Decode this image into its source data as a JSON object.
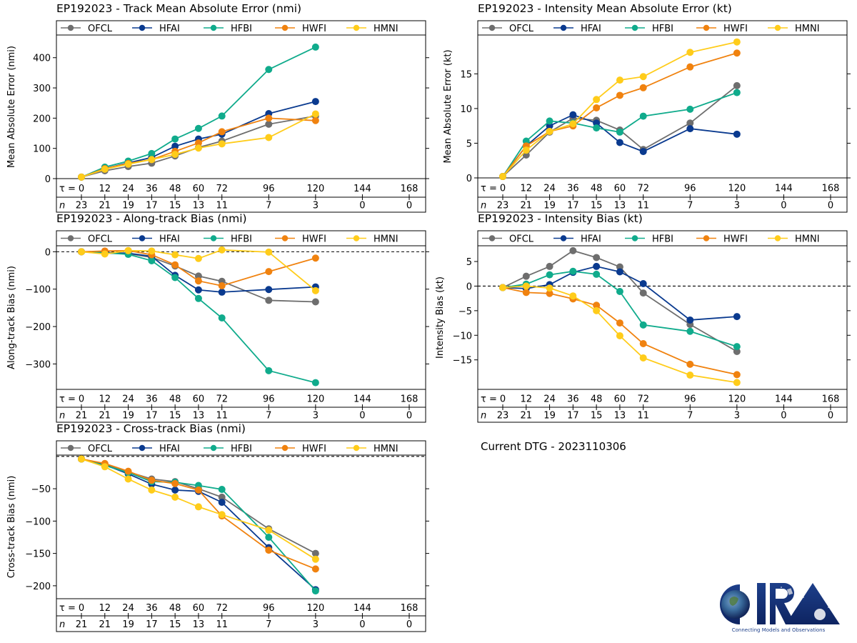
{
  "series_styles": [
    {
      "name": "OFCL",
      "color": "#6e6e6e"
    },
    {
      "name": "HFAI",
      "color": "#0a3a8f"
    },
    {
      "name": "HFBI",
      "color": "#10ab8c"
    },
    {
      "name": "HWFI",
      "color": "#f0820f"
    },
    {
      "name": "HMNI",
      "color": "#ffcc1a"
    }
  ],
  "tau_label": "τ = ",
  "n_label": "n",
  "tau_ticks": [
    0,
    12,
    24,
    36,
    48,
    60,
    72,
    96,
    120,
    144,
    168
  ],
  "current_dtg": "Current DTG - 2023110306",
  "logo": {
    "text": "CIRA",
    "tagline": "Connecting Models and Observations"
  },
  "chart_data": [
    {
      "id": "track-mae",
      "type": "line",
      "title": "EP192023 - Track Mean Absolute Error (nmi)",
      "xlabel": "",
      "ylabel": "Mean Absolute Error (nmi)",
      "x": [
        0,
        12,
        24,
        36,
        48,
        60,
        72,
        96,
        120
      ],
      "ylim": [
        0,
        475
      ],
      "yticks": [
        0,
        100,
        200,
        300,
        400
      ],
      "zero_line": false,
      "legend": "top",
      "n_counts": [
        23,
        21,
        19,
        17,
        15,
        13,
        11,
        7,
        3,
        0,
        0
      ],
      "series": [
        {
          "name": "OFCL",
          "values": [
            5,
            26,
            40,
            51,
            75,
            103,
            124,
            180,
            207
          ]
        },
        {
          "name": "HFAI",
          "values": [
            5,
            33,
            52,
            70,
            107,
            131,
            147,
            215,
            255
          ]
        },
        {
          "name": "HFBI",
          "values": [
            5,
            38,
            58,
            83,
            131,
            166,
            207,
            361,
            435
          ]
        },
        {
          "name": "HWFI",
          "values": [
            5,
            33,
            50,
            63,
            90,
            118,
            155,
            200,
            192
          ]
        },
        {
          "name": "HMNI",
          "values": [
            5,
            31,
            48,
            63,
            80,
            101,
            115,
            136,
            214
          ]
        }
      ]
    },
    {
      "id": "intensity-mae",
      "type": "line",
      "title": "EP192023 - Intensity Mean Absolute Error (kt)",
      "xlabel": "",
      "ylabel": "Mean Absolute Error (kt)",
      "x": [
        0,
        12,
        24,
        36,
        48,
        60,
        72,
        96,
        120
      ],
      "ylim": [
        0,
        20.6
      ],
      "yticks": [
        0,
        5,
        10,
        15
      ],
      "zero_line": false,
      "legend": "top",
      "n_counts": [
        23,
        21,
        19,
        17,
        15,
        13,
        11,
        7,
        3,
        0,
        0
      ],
      "series": [
        {
          "name": "OFCL",
          "values": [
            0.2,
            3.3,
            6.6,
            8.6,
            8.3,
            6.9,
            4.1,
            7.9,
            13.3
          ]
        },
        {
          "name": "HFAI",
          "values": [
            0.2,
            4.6,
            7.5,
            9.1,
            7.9,
            5.1,
            3.8,
            7.1,
            6.3
          ]
        },
        {
          "name": "HFBI",
          "values": [
            0.2,
            5.3,
            8.2,
            7.9,
            7.2,
            6.6,
            8.9,
            9.9,
            12.3
          ]
        },
        {
          "name": "HWFI",
          "values": [
            0.2,
            4.6,
            6.7,
            7.5,
            10.1,
            11.9,
            13.0,
            16.0,
            18.0
          ]
        },
        {
          "name": "HMNI",
          "values": [
            0.2,
            4.0,
            6.7,
            7.8,
            11.3,
            14.1,
            14.6,
            18.1,
            19.6
          ]
        }
      ]
    },
    {
      "id": "along-track-bias",
      "type": "line",
      "title": "EP192023 - Along-track Bias (nmi)",
      "xlabel": "",
      "ylabel": "Along-track Bias (nmi)",
      "x": [
        0,
        12,
        24,
        36,
        48,
        60,
        72,
        96,
        120
      ],
      "ylim": [
        -368,
        16
      ],
      "yticks": [
        -300,
        -200,
        -100,
        0
      ],
      "zero_line": true,
      "legend": "top",
      "n_counts": [
        21,
        21,
        19,
        17,
        15,
        13,
        11,
        7,
        3,
        0,
        0
      ],
      "series": [
        {
          "name": "OFCL",
          "values": [
            0,
            -4,
            -5,
            -15,
            -38,
            -65,
            -79,
            -130,
            -134
          ]
        },
        {
          "name": "HFAI",
          "values": [
            0,
            -2,
            -4,
            -12,
            -63,
            -102,
            -108,
            -101,
            -94
          ]
        },
        {
          "name": "HFBI",
          "values": [
            0,
            -3,
            -7,
            -24,
            -69,
            -125,
            -177,
            -318,
            -350
          ]
        },
        {
          "name": "HWFI",
          "values": [
            0,
            2,
            3,
            -8,
            -35,
            -78,
            -91,
            -53,
            -17
          ]
        },
        {
          "name": "HMNI",
          "values": [
            0,
            -6,
            3,
            2,
            -8,
            -18,
            5,
            -1,
            -104
          ]
        }
      ]
    },
    {
      "id": "intensity-bias",
      "type": "line",
      "title": "EP192023 - Intensity Bias (kt)",
      "xlabel": "",
      "ylabel": "Intensity Bias (kt)",
      "x": [
        0,
        12,
        24,
        36,
        48,
        60,
        72,
        96,
        120
      ],
      "ylim": [
        -21.0,
        8.2
      ],
      "yticks": [
        -15,
        -10,
        -5,
        0,
        5
      ],
      "zero_line": true,
      "legend": "top",
      "n_counts": [
        23,
        21,
        19,
        17,
        15,
        13,
        11,
        7,
        3,
        0,
        0
      ],
      "series": [
        {
          "name": "OFCL",
          "values": [
            -0.3,
            2.0,
            4.0,
            7.2,
            5.8,
            3.9,
            -1.4,
            -7.8,
            -13.3
          ]
        },
        {
          "name": "HFAI",
          "values": [
            -0.3,
            -0.5,
            0.3,
            2.8,
            4.0,
            2.9,
            0.5,
            -6.9,
            -6.2
          ]
        },
        {
          "name": "HFBI",
          "values": [
            -0.3,
            0.4,
            2.3,
            3.0,
            2.4,
            -1.1,
            -7.9,
            -9.2,
            -12.3
          ]
        },
        {
          "name": "HWFI",
          "values": [
            -0.3,
            -1.3,
            -1.5,
            -2.6,
            -3.9,
            -7.5,
            -11.7,
            -15.9,
            -18.0
          ]
        },
        {
          "name": "HMNI",
          "values": [
            -0.3,
            0.0,
            -0.4,
            -2.0,
            -5.0,
            -10.1,
            -14.6,
            -18.1,
            -19.6
          ]
        }
      ]
    },
    {
      "id": "cross-track-bias",
      "type": "line",
      "title": "EP192023 - Cross-track Bias (nmi)",
      "xlabel": "",
      "ylabel": "Cross-track Bias (nmi)",
      "x": [
        0,
        12,
        24,
        36,
        48,
        60,
        72,
        96,
        120
      ],
      "ylim": [
        -220,
        2
      ],
      "yticks": [
        -200,
        -150,
        -100,
        -50
      ],
      "zero_line": true,
      "legend": "top",
      "n_counts": [
        21,
        21,
        19,
        17,
        15,
        13,
        11,
        7,
        3,
        0,
        0
      ],
      "series": [
        {
          "name": "OFCL",
          "values": [
            -4,
            -12,
            -24,
            -35,
            -39,
            -50,
            -63,
            -112,
            -150
          ]
        },
        {
          "name": "HFAI",
          "values": [
            -4,
            -13,
            -27,
            -43,
            -52,
            -54,
            -71,
            -141,
            -206
          ]
        },
        {
          "name": "HFBI",
          "values": [
            -4,
            -14,
            -25,
            -39,
            -40,
            -45,
            -51,
            -125,
            -208
          ]
        },
        {
          "name": "HWFI",
          "values": [
            -4,
            -11,
            -23,
            -37,
            -42,
            -52,
            -92,
            -145,
            -174
          ]
        },
        {
          "name": "HMNI",
          "values": [
            -4,
            -16,
            -35,
            -52,
            -63,
            -78,
            -90,
            -114,
            -159
          ]
        }
      ]
    }
  ]
}
